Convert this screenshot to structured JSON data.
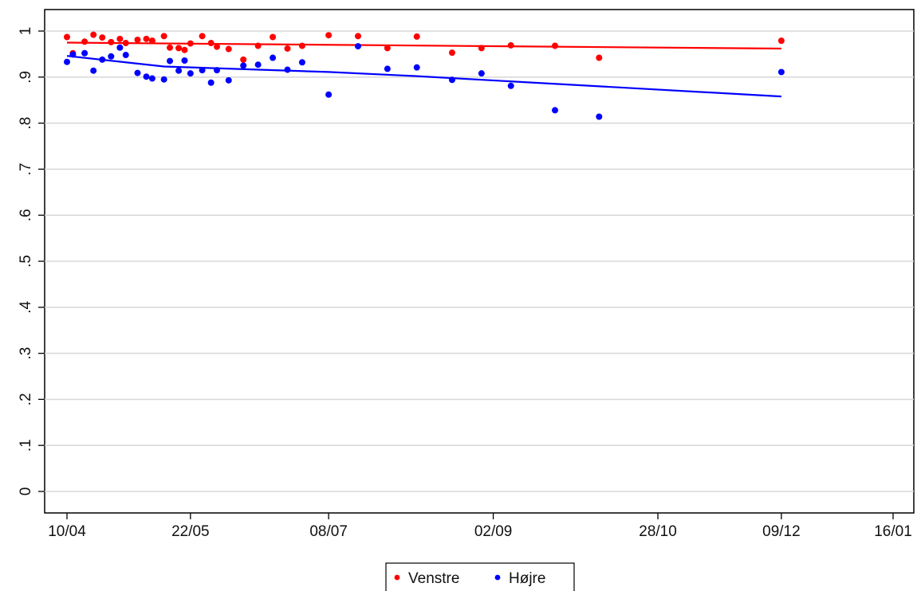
{
  "chart_data": {
    "type": "scatter",
    "x_is_date": true,
    "x_ticks": [
      {
        "label": "10/04",
        "date": "2017-04-10"
      },
      {
        "label": "22/05",
        "date": "2017-05-22"
      },
      {
        "label": "08/07",
        "date": "2017-07-08"
      },
      {
        "label": "02/09",
        "date": "2017-09-02"
      },
      {
        "label": "28/10",
        "date": "2017-10-28"
      },
      {
        "label": "09/12",
        "date": "2017-12-09"
      },
      {
        "label": "16/01",
        "date": "2018-01-16"
      }
    ],
    "xlim": [
      "2017-04-08",
      "2018-01-18"
    ],
    "y_ticks": [
      {
        "label": "0",
        "value": 0
      },
      {
        "label": ".1",
        "value": 0.1
      },
      {
        "label": ".2",
        "value": 0.2
      },
      {
        "label": ".3",
        "value": 0.3
      },
      {
        "label": ".4",
        "value": 0.4
      },
      {
        "label": ".5",
        "value": 0.5
      },
      {
        "label": ".6",
        "value": 0.6
      },
      {
        "label": ".7",
        "value": 0.7
      },
      {
        "label": ".8",
        "value": 0.8
      },
      {
        "label": ".9",
        "value": 0.9
      },
      {
        "label": "1",
        "value": 1
      }
    ],
    "ylim": [
      -0.045,
      1.05
    ],
    "grid": true,
    "legend_position": "bottom",
    "series": [
      {
        "name": "Venstre",
        "color": "#ff0000",
        "points": [
          {
            "x": "2017-04-10",
            "y": 0.987
          },
          {
            "x": "2017-04-12",
            "y": 0.952
          },
          {
            "x": "2017-04-16",
            "y": 0.977
          },
          {
            "x": "2017-04-19",
            "y": 0.992
          },
          {
            "x": "2017-04-22",
            "y": 0.986
          },
          {
            "x": "2017-04-25",
            "y": 0.976
          },
          {
            "x": "2017-04-28",
            "y": 0.983
          },
          {
            "x": "2017-04-30",
            "y": 0.974
          },
          {
            "x": "2017-05-04",
            "y": 0.981
          },
          {
            "x": "2017-05-07",
            "y": 0.983
          },
          {
            "x": "2017-05-09",
            "y": 0.979
          },
          {
            "x": "2017-05-13",
            "y": 0.989
          },
          {
            "x": "2017-05-15",
            "y": 0.964
          },
          {
            "x": "2017-05-18",
            "y": 0.963
          },
          {
            "x": "2017-05-20",
            "y": 0.959
          },
          {
            "x": "2017-05-22",
            "y": 0.973
          },
          {
            "x": "2017-05-26",
            "y": 0.989
          },
          {
            "x": "2017-05-29",
            "y": 0.974
          },
          {
            "x": "2017-05-31",
            "y": 0.966
          },
          {
            "x": "2017-06-04",
            "y": 0.961
          },
          {
            "x": "2017-06-09",
            "y": 0.938
          },
          {
            "x": "2017-06-14",
            "y": 0.968
          },
          {
            "x": "2017-06-19",
            "y": 0.987
          },
          {
            "x": "2017-06-24",
            "y": 0.962
          },
          {
            "x": "2017-06-29",
            "y": 0.968
          },
          {
            "x": "2017-07-08",
            "y": 0.991
          },
          {
            "x": "2017-07-18",
            "y": 0.989
          },
          {
            "x": "2017-07-28",
            "y": 0.963
          },
          {
            "x": "2017-08-07",
            "y": 0.988
          },
          {
            "x": "2017-08-19",
            "y": 0.953
          },
          {
            "x": "2017-08-29",
            "y": 0.963
          },
          {
            "x": "2017-09-08",
            "y": 0.969
          },
          {
            "x": "2017-09-23",
            "y": 0.968
          },
          {
            "x": "2017-10-08",
            "y": 0.942
          },
          {
            "x": "2017-12-09",
            "y": 0.979
          }
        ],
        "trend": [
          {
            "x": "2017-04-10",
            "y": 0.975
          },
          {
            "x": "2017-12-09",
            "y": 0.962
          }
        ]
      },
      {
        "name": "Højre",
        "color": "#0000ff",
        "points": [
          {
            "x": "2017-04-10",
            "y": 0.933
          },
          {
            "x": "2017-04-12",
            "y": 0.949
          },
          {
            "x": "2017-04-16",
            "y": 0.952
          },
          {
            "x": "2017-04-19",
            "y": 0.914
          },
          {
            "x": "2017-04-22",
            "y": 0.938
          },
          {
            "x": "2017-04-25",
            "y": 0.945
          },
          {
            "x": "2017-04-28",
            "y": 0.964
          },
          {
            "x": "2017-04-30",
            "y": 0.948
          },
          {
            "x": "2017-05-04",
            "y": 0.909
          },
          {
            "x": "2017-05-07",
            "y": 0.901
          },
          {
            "x": "2017-05-09",
            "y": 0.897
          },
          {
            "x": "2017-05-13",
            "y": 0.895
          },
          {
            "x": "2017-05-15",
            "y": 0.935
          },
          {
            "x": "2017-05-18",
            "y": 0.914
          },
          {
            "x": "2017-05-20",
            "y": 0.936
          },
          {
            "x": "2017-05-22",
            "y": 0.908
          },
          {
            "x": "2017-05-26",
            "y": 0.915
          },
          {
            "x": "2017-05-29",
            "y": 0.888
          },
          {
            "x": "2017-05-31",
            "y": 0.915
          },
          {
            "x": "2017-06-04",
            "y": 0.893
          },
          {
            "x": "2017-06-09",
            "y": 0.925
          },
          {
            "x": "2017-06-14",
            "y": 0.927
          },
          {
            "x": "2017-06-19",
            "y": 0.942
          },
          {
            "x": "2017-06-24",
            "y": 0.916
          },
          {
            "x": "2017-06-29",
            "y": 0.932
          },
          {
            "x": "2017-07-08",
            "y": 0.862
          },
          {
            "x": "2017-07-18",
            "y": 0.967
          },
          {
            "x": "2017-07-28",
            "y": 0.918
          },
          {
            "x": "2017-08-07",
            "y": 0.921
          },
          {
            "x": "2017-08-19",
            "y": 0.894
          },
          {
            "x": "2017-08-29",
            "y": 0.908
          },
          {
            "x": "2017-09-08",
            "y": 0.881
          },
          {
            "x": "2017-09-23",
            "y": 0.828
          },
          {
            "x": "2017-10-08",
            "y": 0.814
          },
          {
            "x": "2017-12-09",
            "y": 0.911
          }
        ],
        "trend": [
          {
            "x": "2017-04-10",
            "y": 0.946
          },
          {
            "x": "2017-05-13",
            "y": 0.923
          },
          {
            "x": "2017-07-08",
            "y": 0.911
          },
          {
            "x": "2017-08-07",
            "y": 0.902
          },
          {
            "x": "2017-12-09",
            "y": 0.858
          }
        ]
      }
    ]
  }
}
